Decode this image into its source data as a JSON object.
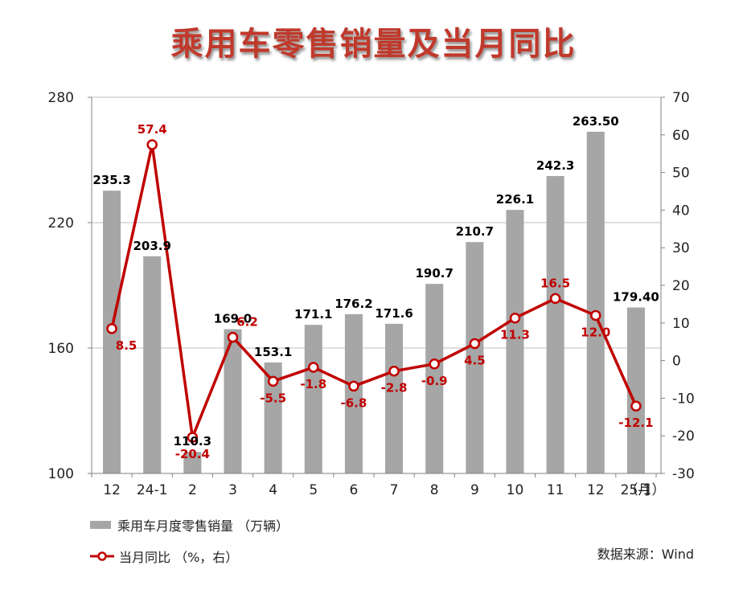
{
  "title": "乘用车零售销量及当月同比",
  "legend": {
    "bar_label": "乘用车月度零售销量 （万辆）",
    "line_label": "当月同比 （%，右）"
  },
  "source": "数据来源：Wind",
  "colors": {
    "bar": "#a6a6a6",
    "line": "#c00000",
    "bar_label": "#000000",
    "line_label": "#c00000"
  },
  "chart_data": {
    "type": "bar",
    "categories": [
      "12",
      "24-1",
      "2",
      "3",
      "4",
      "5",
      "6",
      "7",
      "8",
      "9",
      "10",
      "11",
      "12",
      "25-1"
    ],
    "x_unit": "（月）",
    "series": [
      {
        "name": "乘用车月度零售销量 （万辆）",
        "type": "bar",
        "axis": "left",
        "values": [
          235.3,
          203.9,
          110.3,
          169.0,
          153.1,
          171.1,
          176.2,
          171.6,
          190.7,
          210.7,
          226.1,
          242.3,
          263.5,
          179.4
        ],
        "labels": [
          "235.3",
          "203.9",
          "110.3",
          "169.0",
          "153.1",
          "171.1",
          "176.2",
          "171.6",
          "190.7",
          "210.7",
          "226.1",
          "242.3",
          "263.50",
          "179.40"
        ]
      },
      {
        "name": "当月同比 （%，右）",
        "type": "line",
        "axis": "right",
        "values": [
          8.5,
          57.4,
          -20.4,
          6.2,
          -5.5,
          -1.8,
          -6.8,
          -2.8,
          -0.9,
          4.5,
          11.3,
          16.5,
          12.0,
          -12.1
        ],
        "labels": [
          "8.5",
          "57.4",
          "-20.4",
          "6.2",
          "-5.5",
          "-1.8",
          "-6.8",
          "-2.8",
          "-0.9",
          "4.5",
          "11.3",
          "16.5",
          "12.0",
          "-12.1"
        ]
      }
    ],
    "y_left": {
      "min": 100,
      "max": 280,
      "ticks": [
        100,
        160,
        220,
        280
      ]
    },
    "y_right": {
      "min": -30,
      "max": 70,
      "ticks": [
        -30,
        -20,
        -10,
        0,
        10,
        20,
        30,
        40,
        50,
        60,
        70
      ]
    },
    "grid": true,
    "legend_position": "bottom-left"
  }
}
